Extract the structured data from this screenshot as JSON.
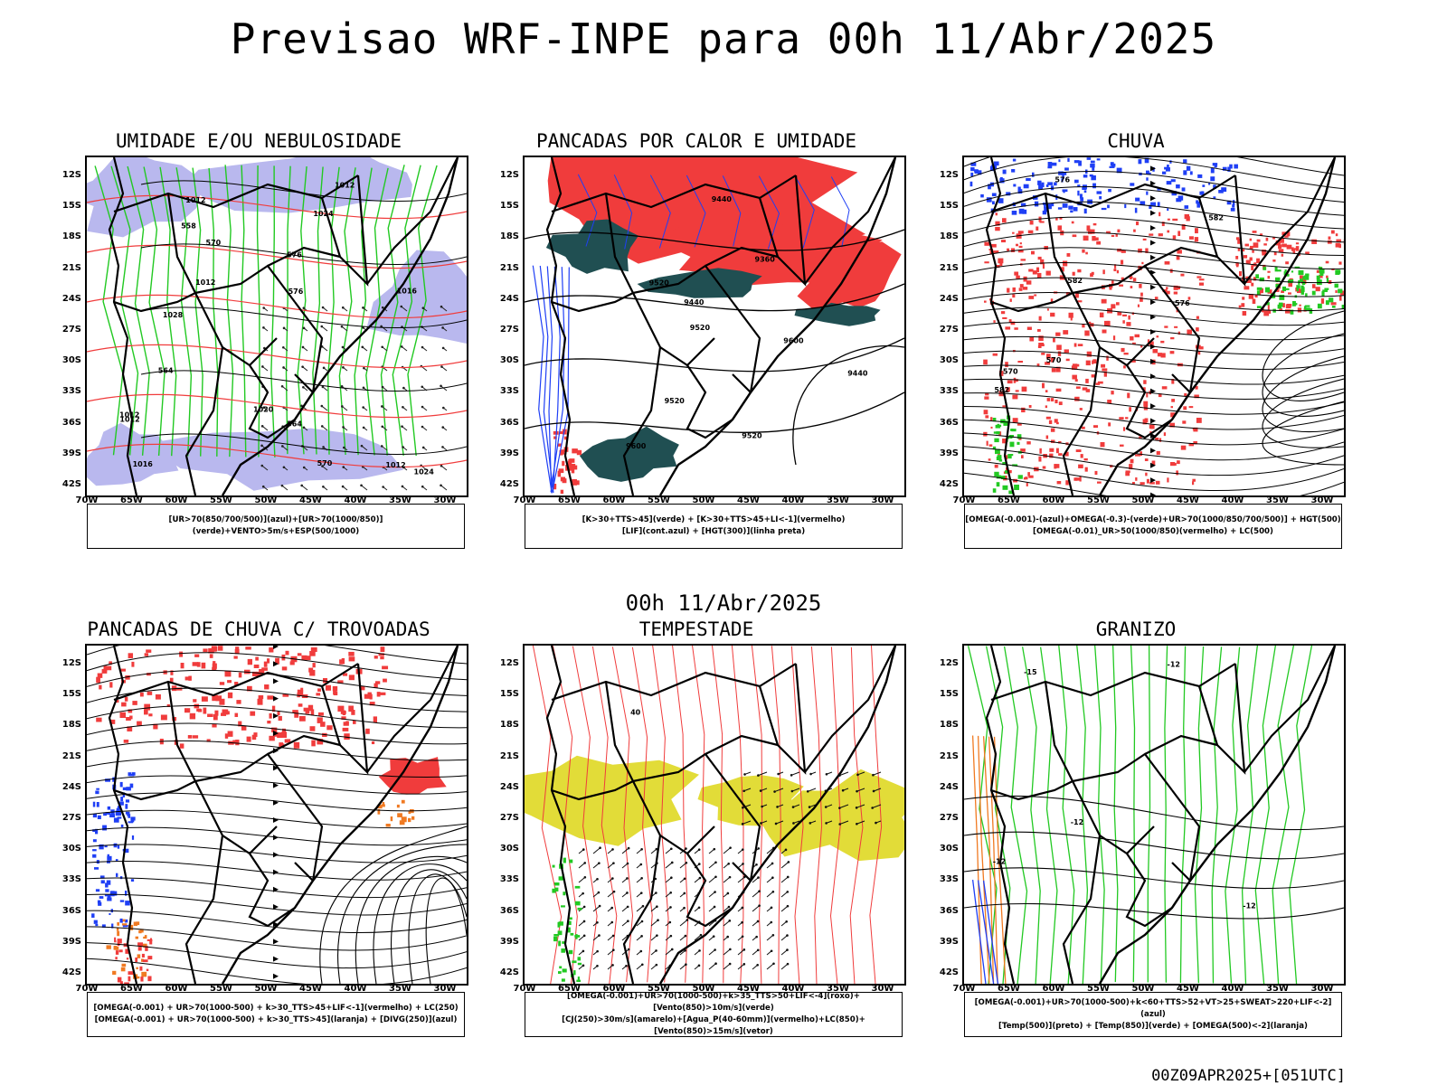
{
  "title": "Previsao WRF-INPE  para 00h 11/Abr/2025",
  "mid_title": "00h 11/Abr/2025",
  "footer": "00Z09APR2025+[051UTC]",
  "axes": {
    "y_ticks": [
      "12S",
      "15S",
      "18S",
      "21S",
      "24S",
      "27S",
      "30S",
      "33S",
      "36S",
      "39S",
      "42S"
    ],
    "x_ticks": [
      "70W",
      "65W",
      "60W",
      "55W",
      "50W",
      "45W",
      "40W",
      "35W",
      "30W"
    ]
  },
  "chart_data": [
    {
      "type": "map",
      "title": "UMIDADE E/OU NEBULOSIDADE",
      "legend": [
        "[UR>70(850/700/500)](azul)+[UR>70(1000/850)](verde)+VENTO>5m/s+ESP(500/1000)"
      ],
      "contour_labels": [
        "1012",
        "1012",
        "1012",
        "1012",
        "1012",
        "1012",
        "1016",
        "1016",
        "1020",
        "1024",
        "1024",
        "1028",
        "570",
        "576",
        "576",
        "564",
        "558",
        "570",
        "564"
      ],
      "fields": [
        "blue-humidity",
        "green-humidity",
        "wind-vectors",
        "isobars",
        "thickness"
      ]
    },
    {
      "type": "map",
      "title": "PANCADAS POR CALOR E UMIDADE",
      "legend": [
        "[K>30+TTS>45](verde) + [K>30+TTS>45+LI<-1](vermelho)",
        "[LIF](cont.azul) + [HGT(300)](linha preta)"
      ],
      "contour_labels": [
        "9600",
        "9600",
        "9520",
        "9520",
        "9520",
        "9440",
        "9440",
        "9360",
        "9440",
        "9520"
      ],
      "fields": [
        "red-instability",
        "teal-instability",
        "blue-lif",
        "hgt300"
      ]
    },
    {
      "type": "map",
      "title": "CHUVA",
      "legend": [
        "[OMEGA(-0.001)-(azul)+OMEGA(-0.3)-(verde)+UR>70(1000/850/700/500)] + HGT(500)",
        "[OMEGA(-0.01)_UR>50(1000/850)(vermelho) + LC(500)"
      ],
      "contour_labels": [
        "582",
        "582",
        "582",
        "576",
        "576",
        "570",
        "570"
      ],
      "fields": [
        "red-rain",
        "blue-omega",
        "green-omega",
        "streamlines"
      ]
    },
    {
      "type": "map",
      "title": "PANCADAS DE CHUVA C/ TROVOADAS",
      "legend": [
        "[OMEGA(-0.001) + UR>70(1000-500) + k>30_TTS>45+LIF<-1](vermelho) + LC(250)",
        "[OMEGA(-0.001) + UR>70(1000-500) + k>30_TTS>45](laranja) + [DIVG(250)](azul)"
      ],
      "contour_labels": [],
      "fields": [
        "red-storms",
        "orange-storms",
        "blue-divergence",
        "streamlines250"
      ]
    },
    {
      "type": "map",
      "title": "TEMPESTADE",
      "legend": [
        "[OMEGA(-0.001)+UR>70(1000-500)+k>35_TTS>50+LIF<-4](roxo)+[Vento(850)>10m/s](verde)",
        "[CJ(250)>30m/s](amarelo)+[Agua_P(40-60mm)](vermelho)+LC(850)+[Vento(850)>15m/s](vetor)"
      ],
      "contour_labels": [
        "40"
      ],
      "fields": [
        "yellow-jet",
        "red-streamlines",
        "wind-vectors",
        "green-wind"
      ]
    },
    {
      "type": "map",
      "title": "GRANIZO",
      "legend": [
        "[OMEGA(-0.001)+UR>70(1000-500)+k<60+TTS>52+VT>25+SWEAT>220+LIF<-2](azul)",
        "[Temp(500)](preto) + [Temp(850)](verde) + [OMEGA(500)<-2](laranja)"
      ],
      "contour_labels": [
        "-12",
        "-15",
        "-12",
        "-12",
        "-12"
      ],
      "fields": [
        "green-temp850",
        "black-temp500",
        "orange-omega",
        "blue-hail"
      ]
    }
  ],
  "colors": {
    "red": "#f03c3c",
    "green": "#22c922",
    "blue": "#1f3ff5",
    "lavender": "#b9b8ee",
    "teal": "#204f52",
    "yellow": "#e2dc38",
    "orange": "#f07a22"
  }
}
